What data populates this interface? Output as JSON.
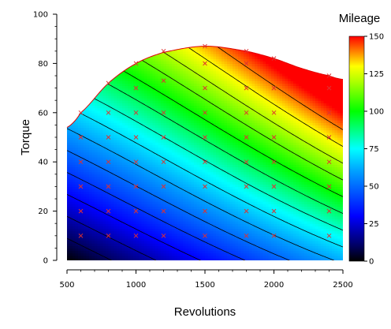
{
  "chart_data": {
    "type": "heatmap",
    "title": "",
    "xlabel": "Revolutions",
    "ylabel": "Torque",
    "xlim": [
      500,
      2500
    ],
    "ylim": [
      0,
      100
    ],
    "x_ticks": [
      500,
      1000,
      1500,
      2000,
      2500
    ],
    "y_ticks": [
      0,
      20,
      40,
      60,
      80,
      100
    ],
    "colorbar": {
      "title": "Mileage",
      "range": [
        0,
        150
      ],
      "ticks": [
        0,
        25,
        50,
        75,
        100,
        125,
        150
      ],
      "colormap": "rainbow"
    },
    "contour_levels": [
      10,
      20,
      30,
      40,
      50,
      60,
      70,
      80,
      90,
      100,
      110,
      120,
      130,
      140
    ],
    "max_torque_boundary": {
      "revolutions": [
        500,
        600,
        800,
        1000,
        1200,
        1500,
        1800,
        2000,
        2200,
        2400,
        2500
      ],
      "torque": [
        54,
        60,
        72,
        80,
        84.5,
        87,
        85,
        82,
        78,
        75,
        73.5
      ]
    },
    "samples": {
      "revolutions": [
        600,
        600,
        600,
        600,
        600,
        600,
        800,
        800,
        800,
        800,
        800,
        800,
        800,
        1000,
        1000,
        1000,
        1000,
        1000,
        1000,
        1000,
        1000,
        1200,
        1200,
        1200,
        1200,
        1200,
        1200,
        1200,
        1200,
        1500,
        1500,
        1500,
        1500,
        1500,
        1500,
        1500,
        1500,
        1500,
        1800,
        1800,
        1800,
        1800,
        1800,
        1800,
        1800,
        1800,
        1800,
        2000,
        2000,
        2000,
        2000,
        2000,
        2000,
        2000,
        2000,
        2400,
        2400,
        2400,
        2400,
        2400,
        2400,
        2400,
        2400
      ],
      "torque": [
        10,
        20,
        30,
        40,
        50,
        60,
        10,
        20,
        30,
        40,
        50,
        60,
        72,
        10,
        20,
        30,
        40,
        50,
        60,
        70,
        80,
        10,
        20,
        30,
        40,
        50,
        60,
        73,
        85,
        10,
        20,
        30,
        40,
        50,
        60,
        70,
        80,
        87,
        10,
        20,
        30,
        40,
        50,
        60,
        70,
        80,
        85,
        10,
        20,
        30,
        40,
        50,
        60,
        70,
        82,
        10,
        20,
        30,
        40,
        50,
        60,
        70,
        75
      ],
      "marker": "x",
      "color": "#e03030"
    }
  }
}
